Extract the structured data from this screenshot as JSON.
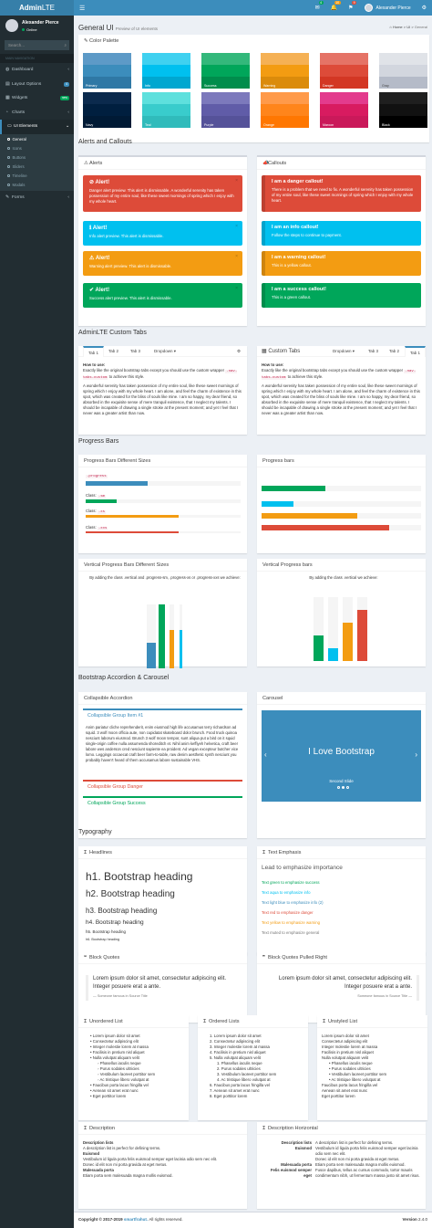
{
  "header": {
    "logo_bold": "Admin",
    "logo_light": "LTE",
    "mail_badge": "4",
    "notif_badge": "10",
    "flag_badge": "9",
    "user": "Alexander Pierce"
  },
  "sidebar": {
    "user": "Alexander Pierce",
    "status": "Online",
    "search_placeholder": "Search...",
    "section": "MAIN NAVIGATION",
    "items": [
      {
        "label": "Dashboard"
      },
      {
        "label": "Layout Options",
        "pill": "4"
      },
      {
        "label": "Widgets",
        "pill": "new"
      },
      {
        "label": "Charts"
      },
      {
        "label": "UI Elements"
      },
      {
        "label": "Forms"
      }
    ],
    "sub": [
      "General",
      "Icons",
      "Buttons",
      "Sliders",
      "Timeline",
      "Modals"
    ]
  },
  "page": {
    "title": "General UI",
    "subtitle": "Preview of UI elements",
    "crumbs": [
      "Home",
      "UI",
      "General"
    ]
  },
  "palette": {
    "title": "Color Palette",
    "colors": [
      {
        "name": "Primary",
        "shades": [
          "#5d9ac7",
          "#3c8dbc",
          "#2f78a5"
        ]
      },
      {
        "name": "Info",
        "shades": [
          "#40d1f0",
          "#00c0ef",
          "#00a7d0"
        ]
      },
      {
        "name": "Success",
        "shades": [
          "#33b87b",
          "#00a65a",
          "#008d4c"
        ]
      },
      {
        "name": "Warning",
        "shades": [
          "#f5b155",
          "#f39c12",
          "#db8b0b"
        ]
      },
      {
        "name": "Danger",
        "shades": [
          "#e57366",
          "#dd4b39",
          "#d33724"
        ]
      },
      {
        "name": "Gray",
        "shades": [
          "#e0e3e8",
          "#d2d6de",
          "#b5bbc8"
        ]
      },
      {
        "name": "Navy",
        "shades": [
          "#0b2a4d",
          "#001f3f",
          "#001a35"
        ]
      },
      {
        "name": "Teal",
        "shades": [
          "#5ee0dd",
          "#39cccc",
          "#30bbbb"
        ]
      },
      {
        "name": "Purple",
        "shades": [
          "#7c79bc",
          "#605ca8",
          "#555299"
        ]
      },
      {
        "name": "Orange",
        "shades": [
          "#ff9a4a",
          "#ff851b",
          "#ff7701"
        ]
      },
      {
        "name": "Maroon",
        "shades": [
          "#e33b8d",
          "#d81b60",
          "#ca195a"
        ]
      },
      {
        "name": "Black",
        "shades": [
          "#1f1f1f",
          "#111111",
          "#000000"
        ]
      }
    ]
  },
  "alerts_section": "Alerts and Callouts",
  "alerts": {
    "title": "Alerts",
    "items": [
      {
        "title": "Alert!",
        "text": "Danger alert preview. This alert is dismissable. A wonderful serenity has taken possession of my entire soul, like these sweet mornings of spring which I enjoy with my whole heart.",
        "color": "#dd4b39",
        "icon": "⊘"
      },
      {
        "title": "Alert!",
        "text": "Info alert preview. This alert is dismissable.",
        "color": "#00c0ef",
        "icon": "ℹ"
      },
      {
        "title": "Alert!",
        "text": "Warning alert preview. This alert is dismissable.",
        "color": "#f39c12",
        "icon": "⚠"
      },
      {
        "title": "Alert!",
        "text": "Success alert preview. This alert is dismissable.",
        "color": "#00a65a",
        "icon": "✔"
      }
    ]
  },
  "callouts": {
    "title": "Callouts",
    "items": [
      {
        "title": "I am a danger callout!",
        "text": "There is a problem that we need to fix. A wonderful serenity has taken possession of my entire soul, like these sweet mornings of spring which I enjoy with my whole heart.",
        "color": "#dd4b39"
      },
      {
        "title": "I am an info callout!",
        "text": "Follow the steps to continue to payment.",
        "color": "#00c0ef"
      },
      {
        "title": "I am a warning callout!",
        "text": "This is a yellow callout.",
        "color": "#f39c12"
      },
      {
        "title": "I am a success callout!",
        "text": "This is a green callout.",
        "color": "#00a65a"
      }
    ]
  },
  "tabs_section": "AdminLTE Custom Tabs",
  "tabs": {
    "left": [
      "Tab 1",
      "Tab 2",
      "Tab 3",
      "Dropdown ▾"
    ],
    "right": [
      "Tab 1",
      "Tab 2",
      "Tab 3",
      "Dropdown ▾"
    ],
    "custom_title": "Custom Tabs",
    "how": "How to use:",
    "desc_a": "Exactly like the original bootstrap tabs except you should use the custom wrapper",
    "code": ".nav-tabs-custom",
    "desc_b": "to achieve this style.",
    "body": "A wonderful serenity has taken possession of my entire soul, like these sweet mornings of spring which I enjoy with my whole heart. I am alone, and feel the charm of existence in this spot, which was created for the bliss of souls like mine. I am so happy, my dear friend, so absorbed in the exquisite sense of mere tranquil existence, that I neglect my talents. I should be incapable of drawing a single stroke at the present moment; and yet I feel that I never was a greater artist than now."
  },
  "progress_section": "Progress Bars",
  "progress": {
    "sizes_title": "Progress Bars Different Sizes",
    "sizes": [
      {
        "code": ".progress",
        "value": 40
      },
      {
        "label": "Class:",
        "code": ".sm",
        "value": 20
      },
      {
        "label": "Class:",
        "code": ".xs",
        "value": 60
      },
      {
        "label": "Class:",
        "code": ".xxs",
        "value": 60
      }
    ],
    "bars_title": "Progress bars",
    "bars": [
      {
        "value": 40,
        "color": "#00a65a"
      },
      {
        "value": 20,
        "color": "#00c0ef"
      },
      {
        "value": 60,
        "color": "#f39c12"
      },
      {
        "value": 80,
        "color": "#dd4b39"
      }
    ],
    "vsizes_title": "Vertical Progress Bars Different Sizes",
    "vsizes_intro": "By adding the class .vertical and .progress-sm, .progress-xs or .progress-xxs we achieve:",
    "vsizes": [
      {
        "value": 40,
        "color": "#3c8dbc"
      },
      {
        "value": 100,
        "color": "#00a65a"
      },
      {
        "value": 60,
        "color": "#f39c12"
      },
      {
        "value": 60,
        "color": "#00c0ef"
      }
    ],
    "vbars_title": "Vertical Progress bars",
    "vbars_intro": "By adding the class .vertical we achieve:",
    "vbars": [
      {
        "value": 40,
        "color": "#00a65a"
      },
      {
        "value": 20,
        "color": "#00c0ef"
      },
      {
        "value": 60,
        "color": "#f39c12"
      },
      {
        "value": 80,
        "color": "#dd4b39"
      }
    ]
  },
  "accordion_section": "Bootstrap Accordion & Carousel",
  "accordion": {
    "title": "Collapsible Accordion",
    "items": [
      {
        "label": "Collapsible Group Item #1",
        "color": "#3c8dbc"
      },
      {
        "label": "Collapsible Group Danger",
        "color": "#dd4b39"
      },
      {
        "label": "Collapsible Group Success",
        "color": "#00a65a"
      }
    ],
    "body": "Anim pariatur cliche reprehenderit, enim eiusmod high life accusamus terry richardson ad squid. 3 wolf moon officia aute, non cupidatat skateboard dolor brunch. Food truck quinoa nesciunt laborum eiusmod. Brunch 3 wolf moon tempor, sunt aliqua put a bird on it squid single-origin coffee nulla assumenda shoreditch et. Nihil anim keffiyeh helvetica, craft beer labore wes anderson cred nesciunt sapiente ea proident. Ad vegan excepteur butcher vice lomo. Leggings occaecat craft beer farm-to-table, raw denim aesthetic synth nesciunt you probably haven't heard of them accusamus labore sustainable VHS."
  },
  "carousel": {
    "title": "Carousel",
    "text": "I Love Bootstrap",
    "caption": "Second Slide",
    "bg": "#3c8dbc"
  },
  "typo_section": "Typography",
  "headlines": {
    "title": "Headlines",
    "items": [
      "h1. Bootstrap heading",
      "h2. Bootstrap heading",
      "h3. Bootstrap heading",
      "h4. Bootstrap heading",
      "h5. Bootstrap heading",
      "h6. Bootstrap heading"
    ]
  },
  "emphasis": {
    "title": "Text Emphasis",
    "lead": "Lead to emphasize importance",
    "items": [
      {
        "text": "Text green to emphasize success",
        "color": "#00a65a"
      },
      {
        "text": "Text aqua to emphasize info",
        "color": "#00c0ef"
      },
      {
        "text": "Text light blue to emphasize info (2)",
        "color": "#3c8dbc"
      },
      {
        "text": "Text red to emphasize danger",
        "color": "#dd4b39"
      },
      {
        "text": "Text yellow to emphasize warning",
        "color": "#f39c12"
      },
      {
        "text": "Text muted to emphasize general",
        "color": "#777777"
      }
    ]
  },
  "quotes": {
    "title": "Block Quotes",
    "text": "Lorem ipsum dolor sit amet, consectetur adipiscing elit. Integer posuere erat a ante.",
    "footer": "— Someone famous in Source Title",
    "title2": "Block Quotes Pulled Right",
    "footer2": "Someone famous in Source Title —"
  },
  "lists": {
    "ul_title": "Unordered List",
    "ol_title": "Ordered Lists",
    "un_title": "Unstyled List",
    "items": [
      "Lorem ipsum dolor sit amet",
      "Consectetur adipiscing elit",
      "Integer molestie lorem at massa",
      "Facilisis in pretium nisl aliquet",
      "Nulla volutpat aliquam velit"
    ],
    "nested": [
      "Phasellus iaculis neque",
      "Purus sodales ultricies",
      "Vestibulum laoreet porttitor sem",
      "Ac tristique libero volutpat at"
    ],
    "tail": [
      "Faucibus porta lacus fringilla vel",
      "Aenean sit amet erat nunc",
      "Eget porttitor lorem"
    ]
  },
  "desc": {
    "title": "Description",
    "title2": "Description Horizontal",
    "items": [
      {
        "dt": "Description lists",
        "dd": "A description list is perfect for defining terms."
      },
      {
        "dt": "Euismod",
        "dd": "Vestibulum id ligula porta felis euismod semper eget lacinia odio sem nec elit."
      },
      {
        "dt": "",
        "dd": "Donec id elit non mi porta gravida at eget metus."
      },
      {
        "dt": "Malesuada porta",
        "dd": "Etiam porta sem malesuada magna mollis euismod."
      }
    ],
    "items2": [
      {
        "dt": "Description lists",
        "dd": "A description list is perfect for defining terms."
      },
      {
        "dt": "Euismod",
        "dd": "Vestibulum id ligula porta felis euismod semper eget lacinia odio sem nec elit."
      },
      {
        "dt": "",
        "dd": "Donec id elit non mi porta gravida at eget metus."
      },
      {
        "dt": "Malesuada porta",
        "dd": "Etiam porta sem malesuada magna mollis euismod."
      },
      {
        "dt": "Felis euismod semper eget",
        "dd": "Fusce dapibus, tellus ac cursus commodo, tortor mauris condimentum nibh, ut fermentum massa justo sit amet risus."
      }
    ]
  },
  "footer": {
    "copy": "Copyright © 2017-2019",
    "brand": "smartfrahut.",
    "rights": "All rights reserved.",
    "version_label": "Version",
    "version": "2.4.0"
  }
}
